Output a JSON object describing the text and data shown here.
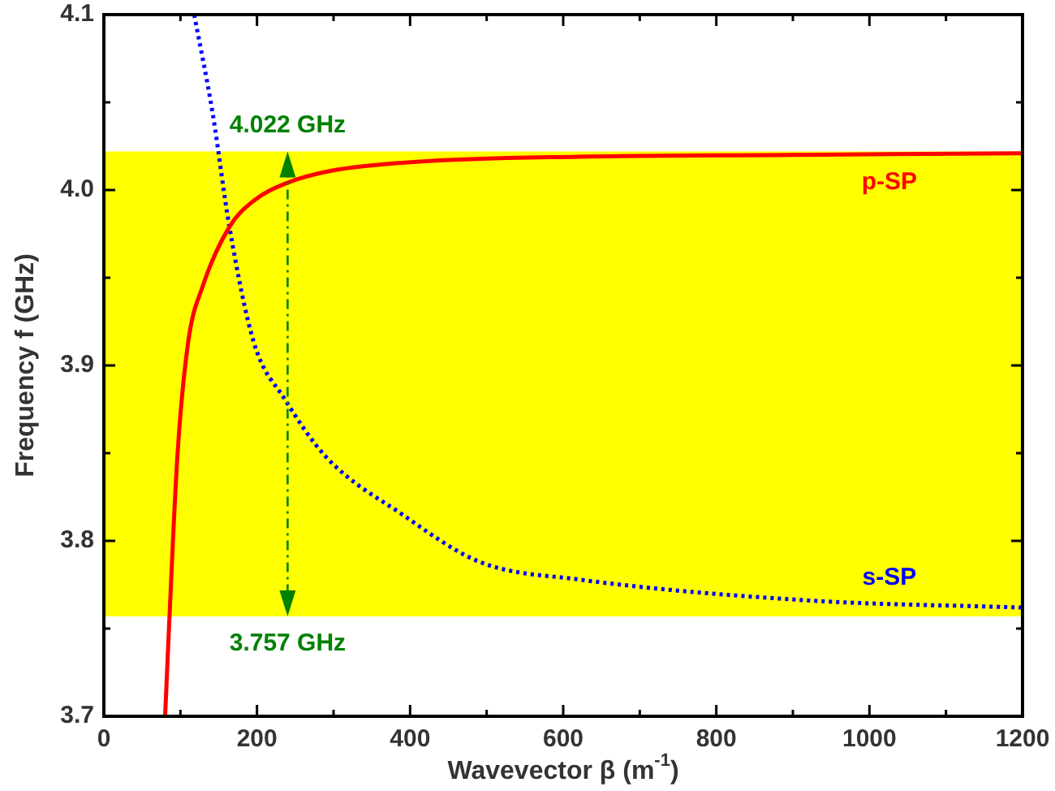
{
  "chart_data": {
    "type": "line",
    "xlabel": "Wavevector β (m$^{-1}$)",
    "ylabel": "Frequency f (GHz)",
    "xlim": [
      0,
      1200
    ],
    "ylim": [
      3.7,
      4.1
    ],
    "xticks": [
      0,
      {
        "value": 100,
        "label": null
      },
      200,
      {
        "value": 300,
        "label": null
      },
      400,
      {
        "value": 500,
        "label": null
      },
      600,
      {
        "value": 700,
        "label": null
      },
      800,
      {
        "value": 900,
        "label": null
      },
      1000,
      {
        "value": 1100,
        "label": null
      },
      1200
    ],
    "yticks": [
      {
        "value": 3.7,
        "label": "3.7"
      },
      {
        "value": 3.75,
        "label": null
      },
      {
        "value": 3.8,
        "label": "3.8"
      },
      {
        "value": 3.85,
        "label": null
      },
      {
        "value": 3.9,
        "label": "3.9"
      },
      {
        "value": 3.95,
        "label": null
      },
      {
        "value": 4.0,
        "label": "4.0"
      },
      {
        "value": 4.05,
        "label": null
      },
      {
        "value": 4.1,
        "label": "4.1"
      }
    ],
    "grid": false,
    "legend": false,
    "marker": "none",
    "series": [
      {
        "name": "p-SP",
        "color": "#ff0000",
        "line_style": "solid",
        "x": [
          80,
          85,
          96,
          110,
          129,
          164,
          196,
          239,
          297,
          405,
          620,
          900,
          1200
        ],
        "values": [
          3.7,
          3.75,
          3.848,
          3.913,
          3.945,
          3.979,
          3.994,
          4.004,
          4.011,
          4.016,
          4.019,
          4.02,
          4.021
        ]
      },
      {
        "name": "s-SP",
        "color": "#0000ff",
        "line_style": "dotted",
        "x": [
          118,
          142,
          164,
          196,
          236,
          290,
          390,
          491,
          620,
          922,
          1200
        ],
        "values": [
          4.1,
          4.044,
          3.979,
          3.913,
          3.881,
          3.848,
          3.815,
          3.788,
          3.778,
          3.766,
          3.762
        ]
      }
    ],
    "bands": [
      {
        "axis": "y",
        "from": 3.757,
        "to": 4.022,
        "color": "#ffff00"
      }
    ],
    "annotations": [
      {
        "text": "4.022 GHz",
        "x": 240,
        "y": 4.022
      },
      {
        "text": "3.757 GHz",
        "x": 240,
        "y": 3.757
      }
    ]
  }
}
